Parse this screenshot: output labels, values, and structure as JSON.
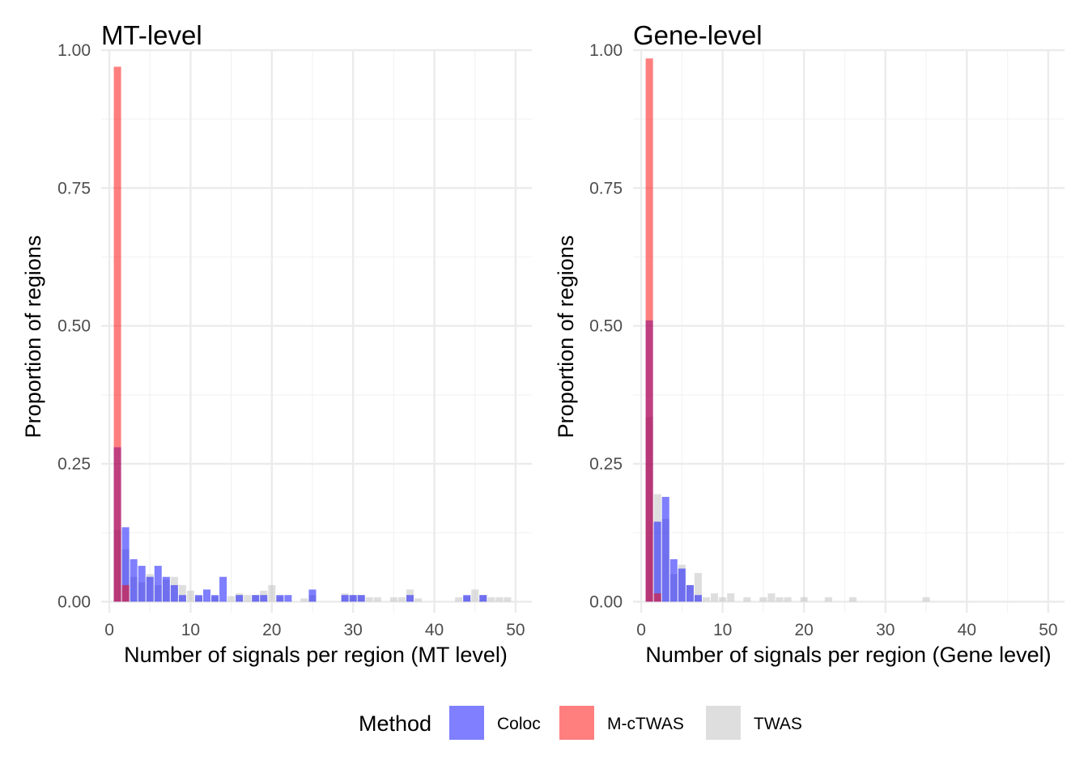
{
  "colors": {
    "Coloc": "#0000ff",
    "M-cTWAS": "#ff0000",
    "TWAS": "#bdbdbd",
    "grid_major": "#ebebeb",
    "grid_minor": "#f3f3f3"
  },
  "legend": {
    "title": "Method",
    "entries": [
      "Coloc",
      "M-cTWAS",
      "TWAS"
    ],
    "placement": "bottom"
  },
  "chart_data": [
    {
      "type": "bar",
      "title": "MT-level",
      "xlabel": "Number of signals per region (MT level)",
      "ylabel": "Proportion of regions",
      "xlim": [
        -1,
        52
      ],
      "ylim": [
        -0.02,
        1.0
      ],
      "xticks": [
        0,
        10,
        20,
        30,
        40,
        50
      ],
      "yticks": [
        0.0,
        0.25,
        0.5,
        0.75,
        1.0
      ],
      "ytick_labels": [
        "0.00",
        "0.25",
        "0.50",
        "0.75",
        "1.00"
      ],
      "grid": true,
      "series": [
        {
          "name": "M-cTWAS",
          "x": [
            1,
            2
          ],
          "values": [
            0.97,
            0.03
          ]
        },
        {
          "name": "Coloc",
          "x": [
            1,
            2,
            3,
            4,
            5,
            6,
            7,
            8,
            9,
            11,
            12,
            13,
            14,
            16,
            18,
            19,
            21,
            22,
            25,
            29,
            30,
            31,
            37,
            44,
            46
          ],
          "values": [
            0.28,
            0.135,
            0.077,
            0.065,
            0.045,
            0.065,
            0.045,
            0.03,
            0.012,
            0.012,
            0.022,
            0.012,
            0.045,
            0.012,
            0.012,
            0.012,
            0.012,
            0.012,
            0.022,
            0.012,
            0.012,
            0.012,
            0.012,
            0.012,
            0.012
          ]
        },
        {
          "name": "TWAS",
          "x": [
            1,
            2,
            3,
            4,
            5,
            6,
            7,
            8,
            9,
            10,
            11,
            13,
            15,
            16,
            17,
            18,
            19,
            20,
            21,
            24,
            25,
            29,
            30,
            31,
            32,
            33,
            35,
            36,
            37,
            38,
            43,
            44,
            45,
            46,
            47,
            48,
            49
          ],
          "values": [
            0.13,
            0.095,
            0.045,
            0.035,
            0.05,
            0.03,
            0.04,
            0.045,
            0.03,
            0.02,
            0.01,
            0.01,
            0.01,
            0.015,
            0.012,
            0.012,
            0.02,
            0.03,
            0.01,
            0.006,
            0.012,
            0.015,
            0.012,
            0.012,
            0.008,
            0.008,
            0.008,
            0.008,
            0.022,
            0.006,
            0.008,
            0.01,
            0.022,
            0.012,
            0.008,
            0.008,
            0.008
          ]
        }
      ]
    },
    {
      "type": "bar",
      "title": "Gene-level",
      "xlabel": "Number of signals per region (Gene level)",
      "ylabel": "Proportion of regions",
      "xlim": [
        -1,
        52
      ],
      "ylim": [
        -0.02,
        1.0
      ],
      "xticks": [
        0,
        10,
        20,
        30,
        40,
        50
      ],
      "yticks": [
        0.0,
        0.25,
        0.5,
        0.75,
        1.0
      ],
      "ytick_labels": [
        "0.00",
        "0.25",
        "0.50",
        "0.75",
        "1.00"
      ],
      "grid": true,
      "series": [
        {
          "name": "M-cTWAS",
          "x": [
            1,
            2
          ],
          "values": [
            0.985,
            0.015
          ]
        },
        {
          "name": "Coloc",
          "x": [
            1,
            2,
            3,
            4,
            5,
            6,
            7
          ],
          "values": [
            0.51,
            0.145,
            0.19,
            0.077,
            0.06,
            0.03,
            0.012
          ]
        },
        {
          "name": "TWAS",
          "x": [
            1,
            2,
            3,
            4,
            5,
            6,
            7,
            8,
            9,
            10,
            11,
            13,
            15,
            16,
            17,
            18,
            20,
            23,
            26,
            35
          ],
          "values": [
            0.335,
            0.195,
            0.15,
            0.05,
            0.067,
            0.03,
            0.052,
            0.008,
            0.015,
            0.008,
            0.015,
            0.008,
            0.008,
            0.015,
            0.008,
            0.008,
            0.008,
            0.008,
            0.008,
            0.008
          ]
        }
      ]
    }
  ]
}
